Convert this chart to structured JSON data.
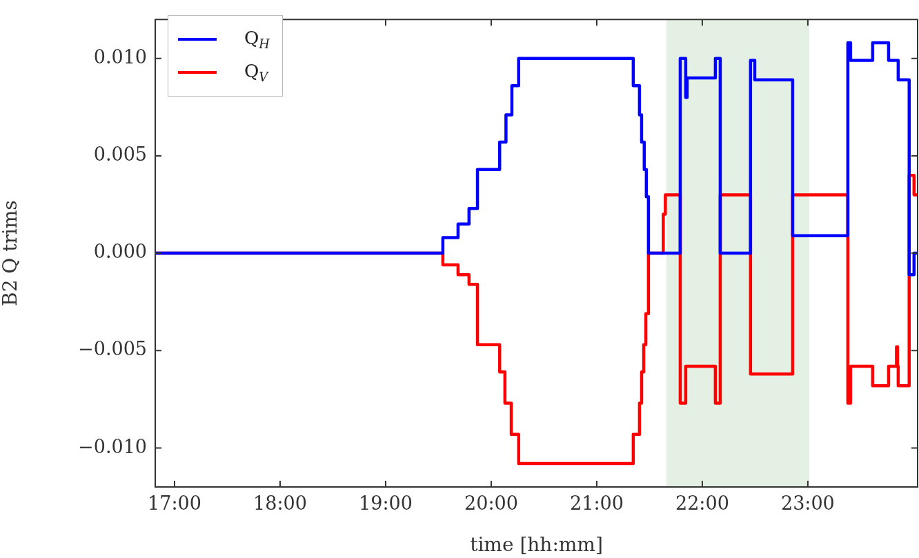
{
  "chart_data": {
    "type": "step",
    "xlabel": "time [hh:mm]",
    "ylabel": "B2 Q trims",
    "xlim": [
      16.817,
      24.04
    ],
    "xticks": [
      {
        "value": 17,
        "label": "17:00"
      },
      {
        "value": 18,
        "label": "18:00"
      },
      {
        "value": 19,
        "label": "19:00"
      },
      {
        "value": 20,
        "label": "20:00"
      },
      {
        "value": 21,
        "label": "21:00"
      },
      {
        "value": 22,
        "label": "22:00"
      },
      {
        "value": 23,
        "label": "23:00"
      }
    ],
    "ylim": [
      -0.012,
      0.012
    ],
    "yticks": [
      {
        "value": -0.01,
        "label": "−0.010"
      },
      {
        "value": -0.005,
        "label": "−0.005"
      },
      {
        "value": 0,
        "label": "0.000"
      },
      {
        "value": 0.005,
        "label": "0.005"
      },
      {
        "value": 0.01,
        "label": "0.010"
      }
    ],
    "grid": false,
    "legend": "top left",
    "bands": [
      {
        "axis": "x",
        "from": 21.66,
        "to": 23.013,
        "color": "#e5f0e5"
      }
    ],
    "series": [
      {
        "name": "Q$_{H}$",
        "color": "#0000ff",
        "x": [
          16.817,
          19.542,
          19.686,
          19.79,
          19.87,
          20.08,
          20.14,
          20.196,
          20.26,
          21.346,
          21.405,
          21.425,
          21.45,
          21.47,
          21.49,
          21.791,
          21.843,
          21.856,
          22.124,
          22.17,
          22.457,
          22.497,
          22.856,
          23.379,
          23.405,
          23.614,
          23.765,
          23.856,
          23.96,
          24.006,
          24.04
        ],
        "values": [
          0,
          0.0008,
          0.0015,
          0.0023,
          0.0043,
          0.0057,
          0.0071,
          0.0086,
          0.01,
          0.0086,
          0.0071,
          0.0057,
          0.0043,
          0.0029,
          0,
          0.01,
          0.008,
          0.009,
          0.01,
          0,
          0.0099,
          0.0089,
          0.0009,
          0.0108,
          0.0099,
          0.0108,
          0.0099,
          0.0089,
          -0.0011,
          0,
          0
        ]
      },
      {
        "name": "Q$_{V}$",
        "color": "#ff0000",
        "x": [
          16.817,
          19.542,
          19.686,
          19.79,
          19.87,
          20.08,
          20.13,
          20.19,
          20.26,
          21.346,
          21.405,
          21.425,
          21.445,
          21.465,
          21.49,
          21.63,
          21.65,
          21.791,
          21.843,
          22.124,
          22.17,
          22.457,
          22.856,
          23.379,
          23.405,
          23.614,
          23.765,
          23.84,
          23.85,
          23.856,
          23.96,
          24.006,
          24.04
        ],
        "values": [
          0,
          -0.0006,
          -0.0011,
          -0.0016,
          -0.0047,
          -0.0061,
          -0.0077,
          -0.0093,
          -0.0108,
          -0.0093,
          -0.0077,
          -0.0061,
          -0.0047,
          -0.0031,
          0,
          0.002,
          0.003,
          -0.0077,
          -0.0058,
          -0.0077,
          0.003,
          -0.0062,
          0.003,
          -0.0077,
          -0.0058,
          -0.0068,
          -0.0058,
          -0.0048,
          -0.0058,
          -0.0068,
          0.004,
          0.003,
          0.003
        ]
      }
    ]
  }
}
